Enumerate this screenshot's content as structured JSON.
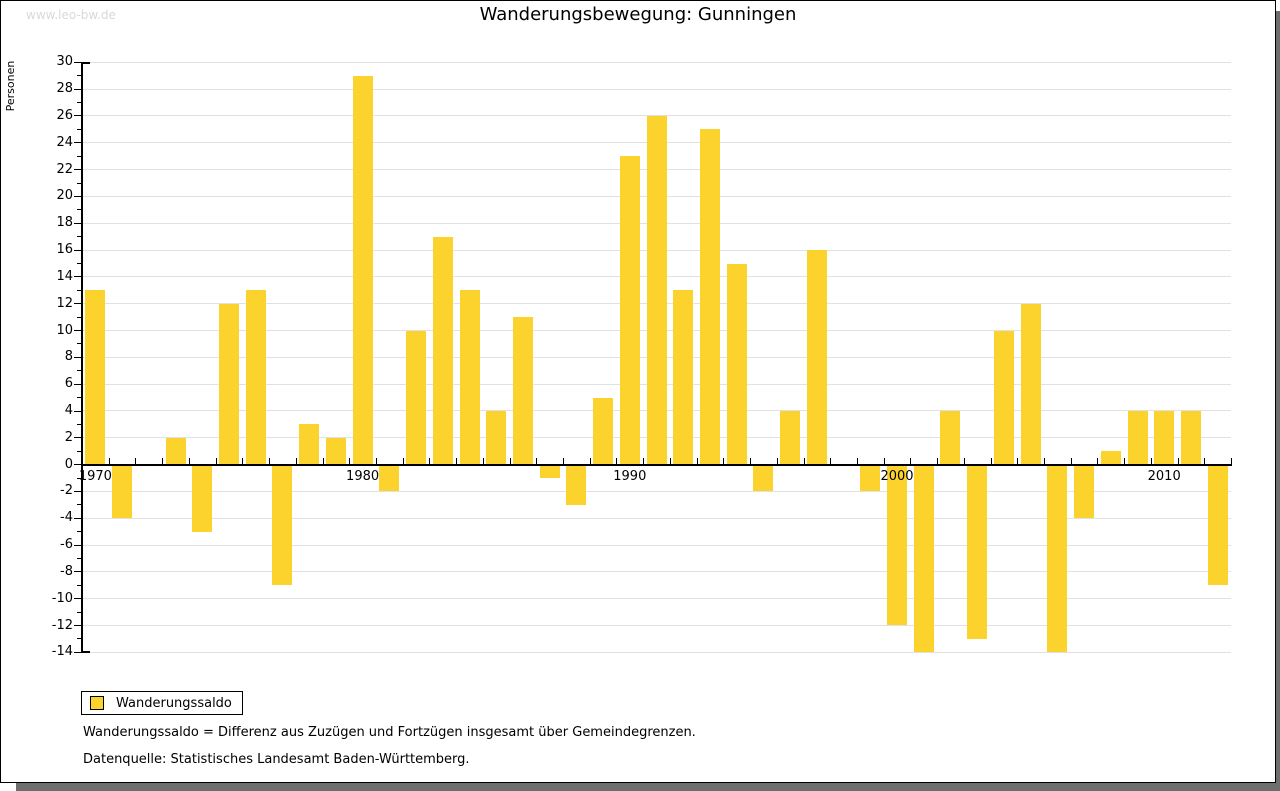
{
  "watermark": "www.leo-bw.de",
  "title": "Wanderungsbewegung: Gunningen",
  "ylabel": "Personen",
  "legend": {
    "label": "Wanderungssaldo"
  },
  "footnotes": [
    "Wanderungssaldo = Differenz aus Zuzügen und Fortzügen insgesamt über Gemeindegrenzen.",
    "Datenquelle: Statistisches Landesamt Baden-Württemberg."
  ],
  "colors": {
    "bar": "#fcd32d",
    "grid": "#e1e1e1",
    "axis": "#000000",
    "watermark": "#d9d9d9",
    "shadow": "#6e6e6e"
  },
  "chart_data": {
    "type": "bar",
    "title": "Wanderungsbewegung: Gunningen",
    "xlabel": "",
    "ylabel": "Personen",
    "series_name": "Wanderungssaldo",
    "years": [
      1970,
      1971,
      1972,
      1973,
      1974,
      1975,
      1976,
      1977,
      1978,
      1979,
      1980,
      1981,
      1982,
      1983,
      1984,
      1985,
      1986,
      1987,
      1988,
      1989,
      1990,
      1991,
      1992,
      1993,
      1994,
      1995,
      1996,
      1997,
      1998,
      1999,
      2000,
      2001,
      2002,
      2003,
      2004,
      2005,
      2006,
      2007,
      2008,
      2009,
      2010,
      2011,
      2012
    ],
    "values": [
      13,
      -4,
      0,
      2,
      -5,
      12,
      13,
      -9,
      3,
      2,
      29,
      -2,
      10,
      17,
      13,
      4,
      11,
      -1,
      -3,
      5,
      23,
      26,
      13,
      25,
      15,
      -2,
      4,
      16,
      0,
      -2,
      -12,
      -14,
      4,
      -13,
      10,
      12,
      -14,
      -4,
      1,
      4,
      4,
      4,
      -9
    ],
    "ylim": [
      -14,
      30
    ],
    "ytick_step": 2,
    "ylabel_step": 2,
    "xticks_labeled": [
      1970,
      1980,
      1990,
      2000,
      2010
    ],
    "grid": true,
    "legend_position": "bottom-left"
  }
}
